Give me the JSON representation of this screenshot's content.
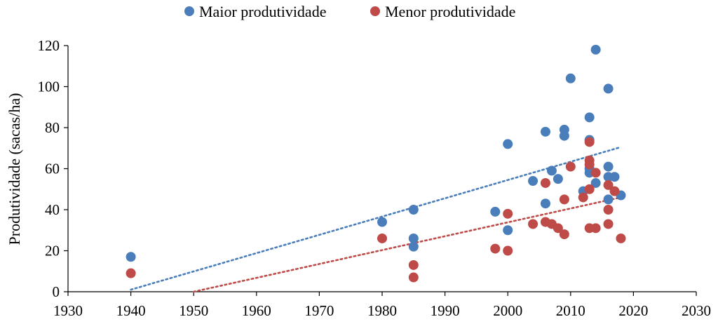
{
  "chart_data": {
    "type": "scatter",
    "title": "",
    "xlabel": "",
    "ylabel": "Produtividade (sacas/ha)",
    "xlim": [
      1930,
      2030
    ],
    "ylim": [
      0,
      120
    ],
    "xticks": [
      1930,
      1940,
      1950,
      1960,
      1970,
      1980,
      1990,
      2000,
      2010,
      2020,
      2030
    ],
    "yticks": [
      0,
      20,
      40,
      60,
      80,
      100,
      120
    ],
    "grid": false,
    "legend_position": "top",
    "series": [
      {
        "name": "Maior produtividade",
        "color": "#4a7ebb",
        "points": [
          [
            1940,
            17
          ],
          [
            1980,
            34
          ],
          [
            1985,
            40
          ],
          [
            1985,
            26
          ],
          [
            1985,
            22
          ],
          [
            1998,
            39
          ],
          [
            2000,
            72
          ],
          [
            2000,
            30
          ],
          [
            2004,
            54
          ],
          [
            2006,
            78
          ],
          [
            2006,
            43
          ],
          [
            2007,
            59
          ],
          [
            2008,
            55
          ],
          [
            2009,
            79
          ],
          [
            2009,
            76
          ],
          [
            2010,
            104
          ],
          [
            2012,
            49
          ],
          [
            2013,
            85
          ],
          [
            2013,
            74
          ],
          [
            2013,
            60
          ],
          [
            2013,
            58
          ],
          [
            2014,
            118
          ],
          [
            2014,
            53
          ],
          [
            2016,
            99
          ],
          [
            2016,
            61
          ],
          [
            2016,
            56
          ],
          [
            2016,
            45
          ],
          [
            2017,
            56
          ],
          [
            2018,
            47
          ]
        ],
        "trendline": {
          "style": "dotted",
          "x": [
            1940,
            2018
          ],
          "y": [
            1,
            70.5
          ]
        }
      },
      {
        "name": "Menor produtividade",
        "color": "#be4b48",
        "points": [
          [
            1940,
            9
          ],
          [
            1980,
            26
          ],
          [
            1985,
            13
          ],
          [
            1985,
            7
          ],
          [
            1998,
            21
          ],
          [
            2000,
            38
          ],
          [
            2000,
            20
          ],
          [
            2004,
            33
          ],
          [
            2006,
            53
          ],
          [
            2006,
            34
          ],
          [
            2007,
            33
          ],
          [
            2008,
            31
          ],
          [
            2009,
            45
          ],
          [
            2009,
            28
          ],
          [
            2010,
            61
          ],
          [
            2012,
            46
          ],
          [
            2013,
            73
          ],
          [
            2013,
            64
          ],
          [
            2013,
            62
          ],
          [
            2013,
            50
          ],
          [
            2013,
            31
          ],
          [
            2014,
            58
          ],
          [
            2014,
            31
          ],
          [
            2016,
            52
          ],
          [
            2016,
            40
          ],
          [
            2016,
            33
          ],
          [
            2017,
            49
          ],
          [
            2018,
            26
          ]
        ],
        "trendline": {
          "style": "dotted",
          "x": [
            1950,
            2018
          ],
          "y": [
            0,
            46
          ]
        }
      }
    ]
  }
}
